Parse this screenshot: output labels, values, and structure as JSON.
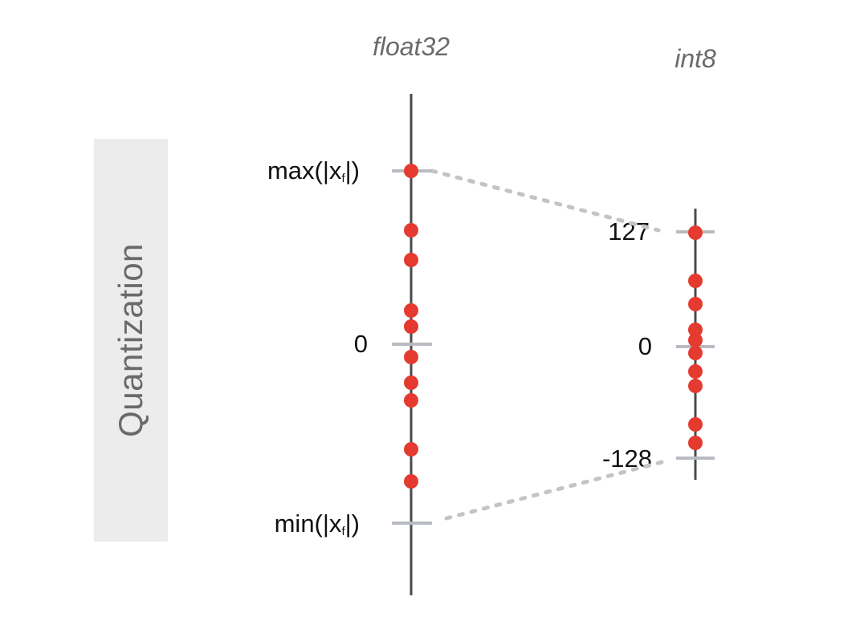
{
  "section_label": "Quantization",
  "float_axis": {
    "title": "float32",
    "ticks": [
      {
        "label_main": "max(|x",
        "label_sub": "f",
        "label_end": "|)"
      },
      {
        "label_main": "0",
        "label_sub": "",
        "label_end": ""
      },
      {
        "label_main": "min(|x",
        "label_sub": "f",
        "label_end": "|)"
      }
    ]
  },
  "int_axis": {
    "title": "int8",
    "ticks": [
      {
        "label": "127"
      },
      {
        "label": "0"
      },
      {
        "label": "-128"
      }
    ]
  },
  "colors": {
    "axis": "#4a4a4a",
    "tick": "#b8bcc2",
    "point": "#e53a2f",
    "mapping": "#c4c4c4",
    "panel": "#ececec",
    "title": "#6a6a6a"
  }
}
